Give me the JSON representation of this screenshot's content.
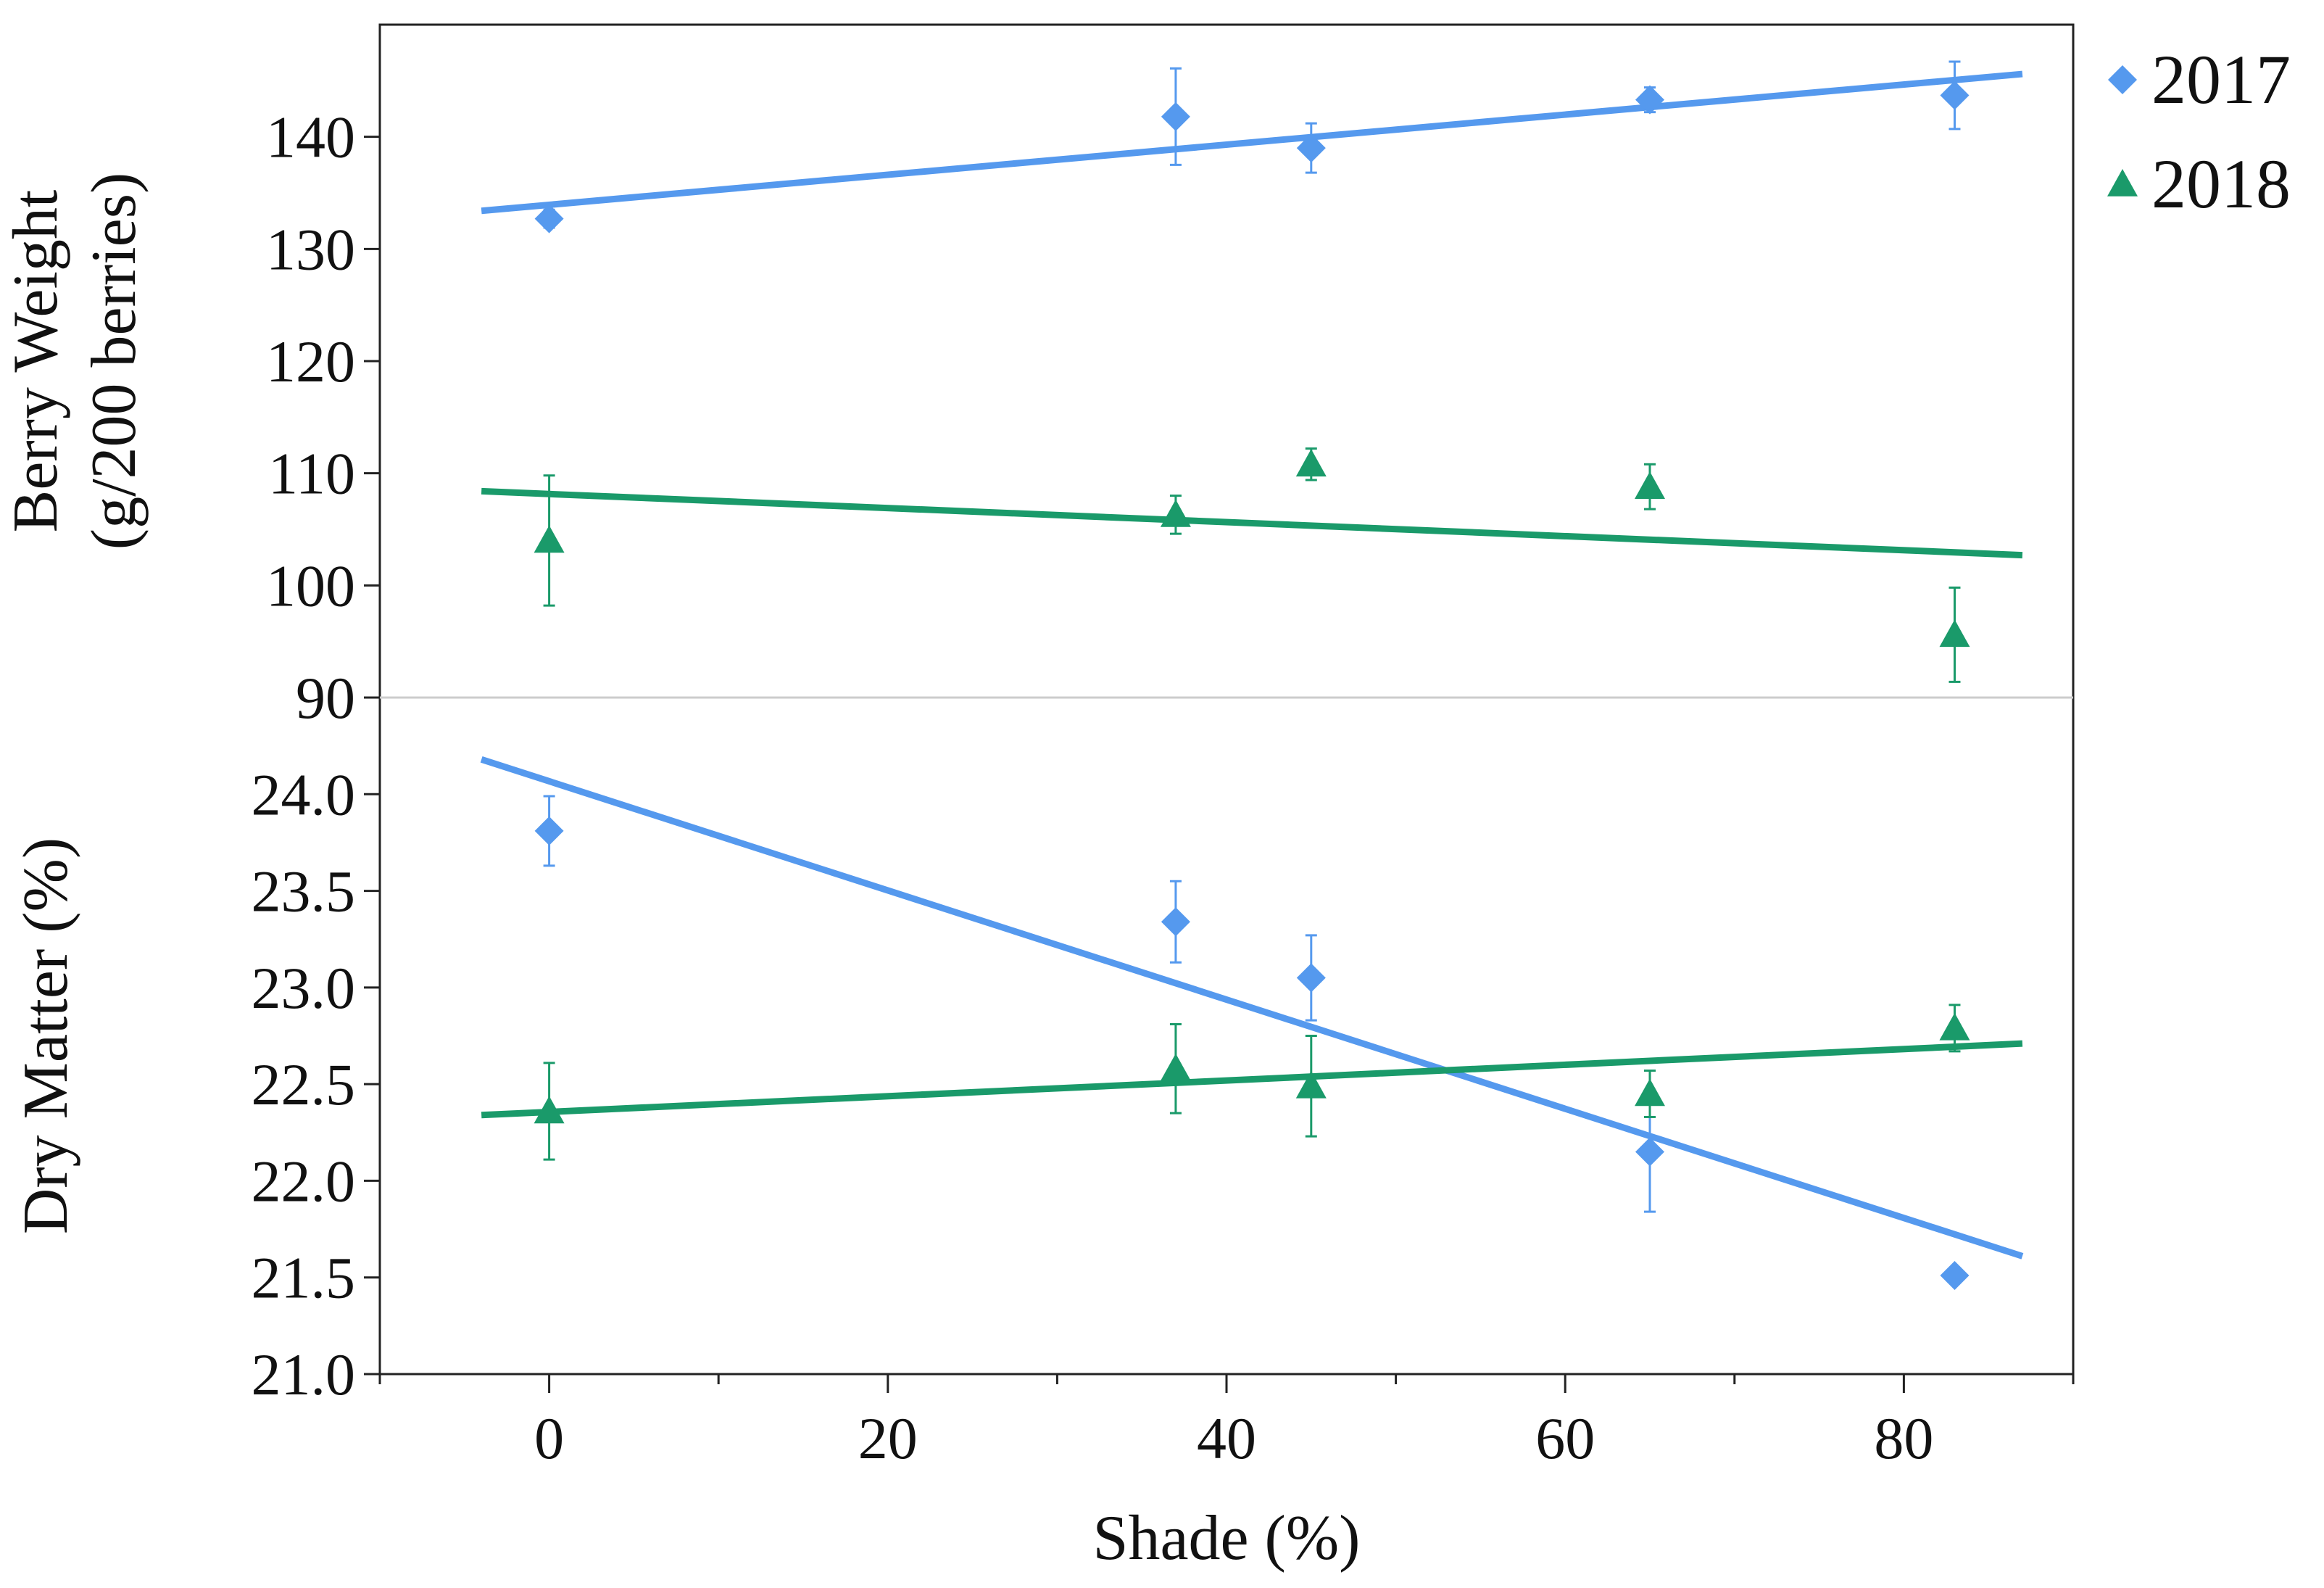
{
  "colors": {
    "series_2017": "#5599ee",
    "series_2018": "#1a9a6a",
    "axis": "#222222",
    "divider": "#cccccc"
  },
  "chart_data": {
    "type": "scatter",
    "shared_x": {
      "label": "Shade (%)",
      "range": [
        -10,
        90
      ],
      "ticks": [
        0,
        20,
        40,
        60,
        80
      ],
      "tick_labels": [
        "0",
        "20",
        "40",
        "60",
        "80"
      ],
      "minor_ticks": [
        -10,
        10,
        30,
        50,
        70,
        90
      ]
    },
    "legend": {
      "placement": "right",
      "entries": [
        {
          "label": "2017",
          "marker": "diamond"
        },
        {
          "label": "2018",
          "marker": "triangle"
        }
      ]
    },
    "panels": [
      {
        "id": "berry-weight",
        "ylabel_lines": [
          "Berry Weight",
          "(g/200 berries)"
        ],
        "ylim": [
          90,
          150
        ],
        "yticks": [
          90,
          100,
          110,
          120,
          130,
          140
        ],
        "ytick_labels": [
          "90",
          "100",
          "110",
          "120",
          "130",
          "140"
        ],
        "series": [
          {
            "name": "2017",
            "points": [
              {
                "x": 0,
                "y": 132.7,
                "err": 0.8
              },
              {
                "x": 37,
                "y": 141.8,
                "err": 4.3
              },
              {
                "x": 45,
                "y": 139.0,
                "err": 2.2
              },
              {
                "x": 65,
                "y": 143.3,
                "err": 1.1
              },
              {
                "x": 83,
                "y": 143.7,
                "err": 3.0
              }
            ],
            "fit": {
              "x": [
                -4,
                87
              ],
              "y": [
                133.4,
                145.6
              ]
            }
          },
          {
            "name": "2018",
            "points": [
              {
                "x": 0,
                "y": 104.0,
                "err": 5.8
              },
              {
                "x": 37,
                "y": 106.3,
                "err": 1.7
              },
              {
                "x": 45,
                "y": 110.8,
                "err": 1.4
              },
              {
                "x": 65,
                "y": 108.8,
                "err": 2.0
              },
              {
                "x": 83,
                "y": 95.6,
                "err": 4.2
              }
            ],
            "fit": {
              "x": [
                -4,
                87
              ],
              "y": [
                108.4,
                102.7
              ]
            }
          }
        ]
      },
      {
        "id": "dry-matter",
        "ylabel_lines": [
          "Dry Matter (%)"
        ],
        "ylim": [
          21.0,
          24.5
        ],
        "yticks": [
          21.0,
          21.5,
          22.0,
          22.5,
          23.0,
          23.5,
          24.0
        ],
        "ytick_labels": [
          "21.0",
          "21.5",
          "22.0",
          "22.5",
          "23.0",
          "23.5",
          "24.0"
        ],
        "series": [
          {
            "name": "2017",
            "points": [
              {
                "x": 0,
                "y": 23.81,
                "err": 0.18
              },
              {
                "x": 37,
                "y": 23.34,
                "err": 0.21
              },
              {
                "x": 45,
                "y": 23.05,
                "err": 0.22
              },
              {
                "x": 65,
                "y": 22.15,
                "err": 0.31
              },
              {
                "x": 83,
                "y": 21.51,
                "err": 0.0
              }
            ],
            "fit": {
              "x": [
                -4,
                87
              ],
              "y": [
                24.18,
                21.61
              ]
            }
          },
          {
            "name": "2018",
            "points": [
              {
                "x": 0,
                "y": 22.36,
                "err": 0.25
              },
              {
                "x": 37,
                "y": 22.58,
                "err": 0.23
              },
              {
                "x": 45,
                "y": 22.49,
                "err": 0.26
              },
              {
                "x": 65,
                "y": 22.45,
                "err": 0.12
              },
              {
                "x": 83,
                "y": 22.79,
                "err": 0.12
              }
            ],
            "fit": {
              "x": [
                -4,
                87
              ],
              "y": [
                22.34,
                22.71
              ]
            }
          }
        ]
      }
    ]
  }
}
